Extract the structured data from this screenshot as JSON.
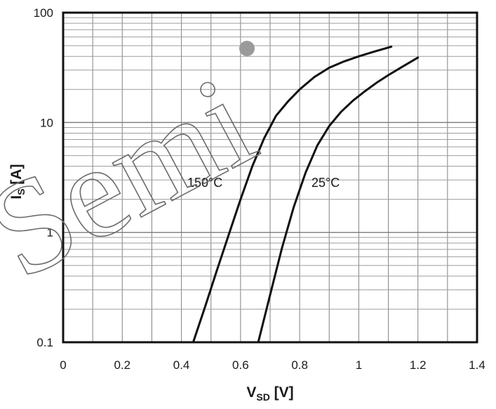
{
  "chart_data": {
    "type": "line",
    "xlabel": {
      "main": "V",
      "sub": "SD",
      "unit": " [V]"
    },
    "ylabel": {
      "main": "I",
      "sub": "S",
      "unit": " [A]"
    },
    "xlim": [
      0,
      1.4
    ],
    "ylim": [
      0.1,
      100
    ],
    "y_scale": "log",
    "grid": true,
    "x_ticks": [
      "0",
      "0.2",
      "0.4",
      "0.6",
      "0.8",
      "1",
      "1.2",
      "1.4"
    ],
    "y_ticks": [
      "0.1",
      "1",
      "10",
      "100"
    ],
    "series": [
      {
        "name": "150°C",
        "color": "#111111",
        "x": [
          0.44,
          0.48,
          0.52,
          0.56,
          0.6,
          0.64,
          0.68,
          0.72,
          0.76,
          0.8,
          0.85,
          0.9,
          0.95,
          1.0,
          1.05,
          1.11
        ],
        "y": [
          0.1,
          0.21,
          0.45,
          0.95,
          2.0,
          4.0,
          7.2,
          11.5,
          15.5,
          20.0,
          26.0,
          31.5,
          36.0,
          40.0,
          44.0,
          49.0
        ]
      },
      {
        "name": "25°C",
        "color": "#111111",
        "x": [
          0.66,
          0.7,
          0.74,
          0.78,
          0.82,
          0.86,
          0.9,
          0.94,
          0.98,
          1.02,
          1.06,
          1.1,
          1.15,
          1.2
        ],
        "y": [
          0.1,
          0.27,
          0.72,
          1.7,
          3.5,
          6.2,
          9.3,
          12.5,
          15.8,
          19.2,
          23.0,
          27.0,
          32.5,
          39.0
        ]
      }
    ],
    "annotations": [
      {
        "text": "150°C",
        "x": 0.42,
        "y": 2.6
      },
      {
        "text": "25°C",
        "x": 0.84,
        "y": 2.6
      }
    ],
    "watermark": "Semi"
  }
}
